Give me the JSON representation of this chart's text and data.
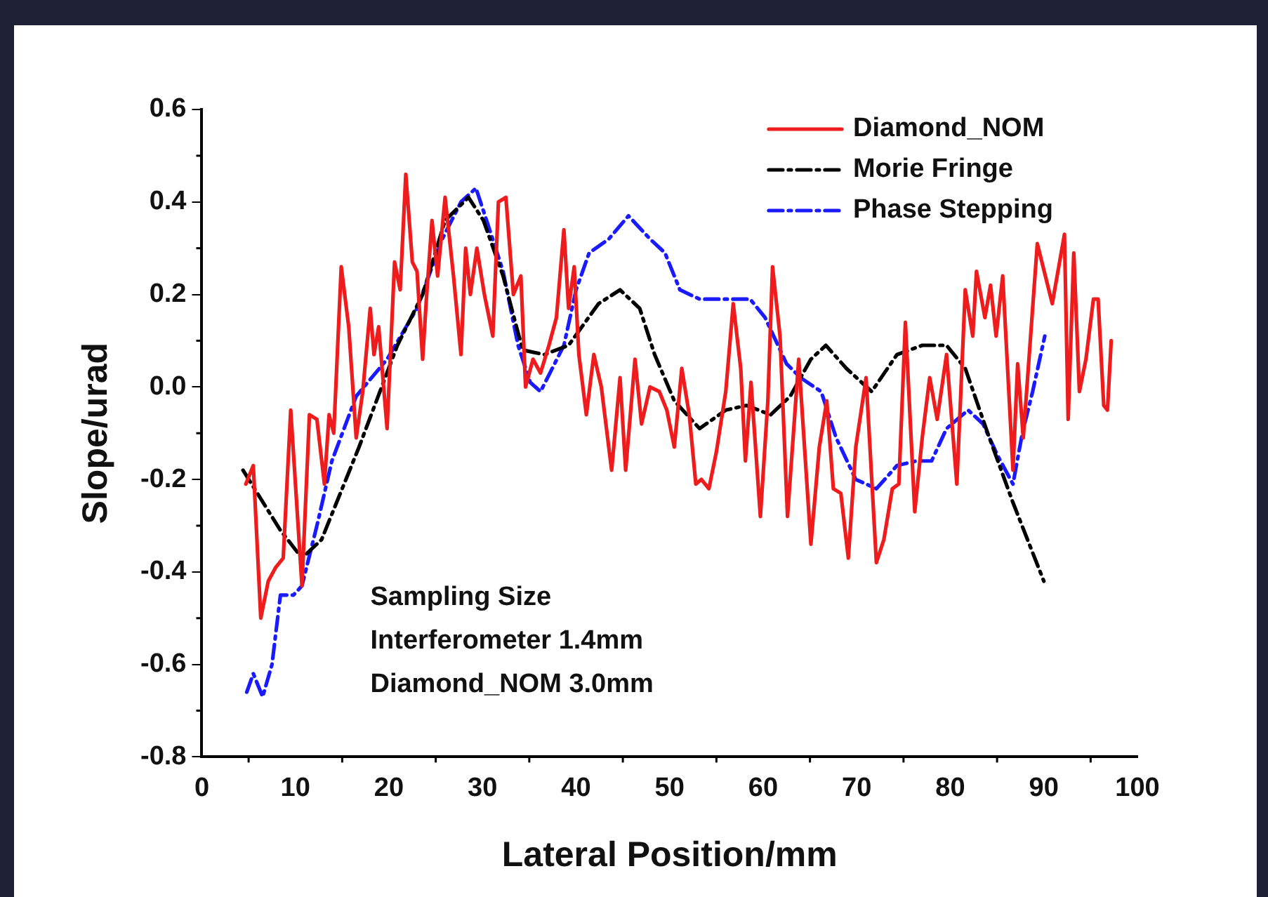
{
  "chart_data": {
    "type": "line",
    "xlabel": "Lateral Position/mm",
    "ylabel": "Slope/urad",
    "xlim": [
      0,
      100
    ],
    "xticks": [
      0,
      10,
      20,
      30,
      40,
      50,
      60,
      70,
      80,
      90,
      100
    ],
    "ylim": [
      -0.8,
      0.6
    ],
    "yticks": [
      -0.8,
      -0.6,
      -0.4,
      -0.2,
      {
        "value": 0,
        "label": "0.0"
      },
      0.2,
      0.4,
      0.6
    ],
    "grid": false,
    "legend": "top right",
    "marker": "none",
    "annotations": [
      "Sampling Size",
      "Interferometer 1.4mm",
      "Diamond_NOM 3.0mm"
    ],
    "series": [
      {
        "name": "Diamond_NOM",
        "color": "#ee1c1c",
        "line_style": "solid",
        "x": [
          4.7,
          5.5,
          6.3,
          7.1,
          7.9,
          8.7,
          9.5,
          10.7,
          11.5,
          12.3,
          13.1,
          13.6,
          14.1,
          14.9,
          15.7,
          16.5,
          17.2,
          18.0,
          18.4,
          18.9,
          19.8,
          20.6,
          21.2,
          21.8,
          22.5,
          23.0,
          23.6,
          24.0,
          24.6,
          25.2,
          26.0,
          26.9,
          27.7,
          28.2,
          28.7,
          29.4,
          30.2,
          31.1,
          31.7,
          32.5,
          33.3,
          34.1,
          34.6,
          35.4,
          36.2,
          37.1,
          37.9,
          38.7,
          39.2,
          39.8,
          40.3,
          41.1,
          41.9,
          42.7,
          43.8,
          44.7,
          45.3,
          46.3,
          47.0,
          47.9,
          48.9,
          49.7,
          50.5,
          51.3,
          52.1,
          52.8,
          53.4,
          54.2,
          55.0,
          56.0,
          56.8,
          57.6,
          58.1,
          58.7,
          59.7,
          60.5,
          61.0,
          61.8,
          62.6,
          63.8,
          65.1,
          66.0,
          66.8,
          67.5,
          68.3,
          69.1,
          69.9,
          71.0,
          72.1,
          72.9,
          73.8,
          74.5,
          75.2,
          76.2,
          77.0,
          77.8,
          78.6,
          79.6,
          80.7,
          81.6,
          82.4,
          82.8,
          83.7,
          84.3,
          84.9,
          85.6,
          86.7,
          87.2,
          87.8,
          89.3,
          90.9,
          92.2,
          92.6,
          93.2,
          93.8,
          94.5,
          95.3,
          95.8,
          96.4,
          96.8,
          97.2
        ],
        "values": [
          -0.21,
          -0.17,
          -0.5,
          -0.42,
          -0.39,
          -0.37,
          -0.05,
          -0.43,
          -0.06,
          -0.07,
          -0.21,
          -0.06,
          -0.1,
          0.26,
          0.13,
          -0.11,
          -0.01,
          0.17,
          0.07,
          0.13,
          -0.09,
          0.27,
          0.21,
          0.46,
          0.27,
          0.25,
          0.06,
          0.19,
          0.36,
          0.24,
          0.41,
          0.24,
          0.07,
          0.3,
          0.2,
          0.3,
          0.2,
          0.11,
          0.4,
          0.41,
          0.2,
          0.24,
          0,
          0.06,
          0.03,
          0.09,
          0.15,
          0.34,
          0.17,
          0.26,
          0.07,
          -0.06,
          0.07,
          0,
          -0.18,
          0.02,
          -0.18,
          0.06,
          -0.08,
          0,
          -0.01,
          -0.05,
          -0.13,
          0.04,
          -0.06,
          -0.21,
          -0.2,
          -0.22,
          -0.14,
          -0.01,
          0.18,
          0.04,
          -0.16,
          0.01,
          -0.28,
          -0.03,
          0.26,
          0.11,
          -0.28,
          0.06,
          -0.34,
          -0.13,
          -0.03,
          -0.22,
          -0.23,
          -0.37,
          -0.13,
          0.02,
          -0.38,
          -0.33,
          -0.22,
          -0.21,
          0.14,
          -0.27,
          -0.11,
          0.02,
          -0.07,
          0.07,
          -0.21,
          0.21,
          0.11,
          0.25,
          0.15,
          0.22,
          0.11,
          0.24,
          -0.18,
          0.05,
          -0.11,
          0.31,
          0.18,
          0.33,
          -0.07,
          0.29,
          -0.01,
          0.06,
          0.19,
          0.19,
          -0.04,
          -0.05,
          0.1
        ]
      },
      {
        "name": "Morie Fringe",
        "color": "#000000",
        "line_style": "dashed",
        "x": [
          4.4,
          8.4,
          10.7,
          12.8,
          16.8,
          20.9,
          23.6,
          26.0,
          28.5,
          30.1,
          32.2,
          33.5,
          34.3,
          36.6,
          39.2,
          42.4,
          44.7,
          46.8,
          48.4,
          50.5,
          53.2,
          56.0,
          58.2,
          60.8,
          62.9,
          65.1,
          66.7,
          68.9,
          71.6,
          74.3,
          77.0,
          79.6,
          81.6,
          84.0,
          86.7,
          90.0
        ],
        "values": [
          -0.18,
          -0.31,
          -0.37,
          -0.33,
          -0.13,
          0.09,
          0.2,
          0.36,
          0.41,
          0.36,
          0.24,
          0.14,
          0.08,
          0.07,
          0.09,
          0.18,
          0.21,
          0.17,
          0.07,
          -0.03,
          -0.09,
          -0.05,
          -0.04,
          -0.06,
          -0.02,
          0.06,
          0.09,
          0.04,
          -0.01,
          0.07,
          0.09,
          0.09,
          0.04,
          -0.1,
          -0.25,
          -0.42
        ]
      },
      {
        "name": "Phase Stepping",
        "color": "#1a1aff",
        "line_style": "dashed",
        "x": [
          4.8,
          5.5,
          6.5,
          7.5,
          8.4,
          9.8,
          10.7,
          12.3,
          13.9,
          16.5,
          19.8,
          23.0,
          25.7,
          27.7,
          29.3,
          30.6,
          32.2,
          33.8,
          35.1,
          36.2,
          37.2,
          38.7,
          40.0,
          41.4,
          43.5,
          45.6,
          47.9,
          49.5,
          51.1,
          53.2,
          56.0,
          58.6,
          60.2,
          62.5,
          64.0,
          66.2,
          67.8,
          69.9,
          72.1,
          74.3,
          76.4,
          78.0,
          79.6,
          81.9,
          83.5,
          85.1,
          86.7,
          87.7,
          88.8,
          90.1
        ],
        "values": [
          -0.66,
          -0.62,
          -0.67,
          -0.6,
          -0.45,
          -0.45,
          -0.43,
          -0.3,
          -0.16,
          -0.02,
          0.06,
          0.17,
          0.32,
          0.4,
          0.43,
          0.35,
          0.25,
          0.09,
          0.01,
          -0.01,
          0.03,
          0.09,
          0.21,
          0.29,
          0.32,
          0.37,
          0.32,
          0.29,
          0.21,
          0.19,
          0.19,
          0.19,
          0.15,
          0.05,
          0.02,
          -0.01,
          -0.11,
          -0.2,
          -0.22,
          -0.17,
          -0.16,
          -0.16,
          -0.09,
          -0.05,
          -0.08,
          -0.15,
          -0.21,
          -0.1,
          -0.01,
          0.11
        ]
      }
    ]
  }
}
